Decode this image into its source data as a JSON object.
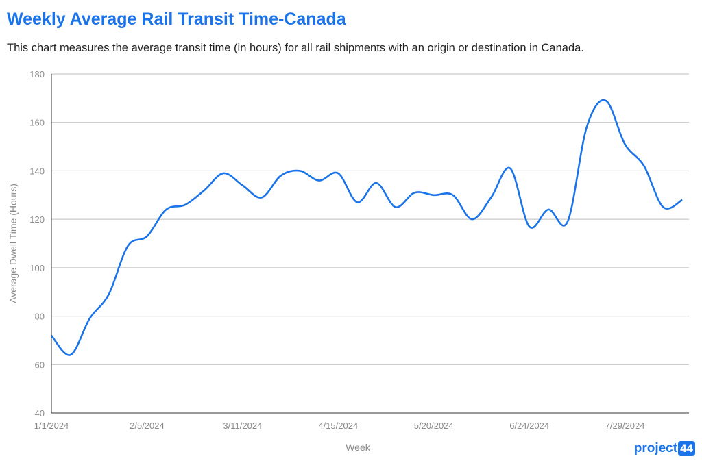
{
  "header": {
    "title": "Weekly Average Rail Transit Time-Canada",
    "subtitle": "This chart measures the average transit time (in hours) for all rail shipments with an origin or destination in Canada."
  },
  "logo": {
    "text": "project",
    "number": "44",
    "color": "#1a73e8"
  },
  "chart_data": {
    "type": "line",
    "title": "Weekly Average Rail Transit Time-Canada",
    "xlabel": "Week",
    "ylabel": "Average Dwell Time (Hours)",
    "ylim": [
      40,
      180
    ],
    "yticks": [
      "40",
      "60",
      "80",
      "100",
      "120",
      "140",
      "160",
      "180"
    ],
    "xticks": [
      "1/1/2024",
      "2/5/2024",
      "3/11/2024",
      "4/15/2024",
      "5/20/2024",
      "6/24/2024",
      "7/29/2024"
    ],
    "grid": true,
    "line_color": "#1a73e8",
    "x": [
      "1/1/2024",
      "1/8/2024",
      "1/15/2024",
      "1/22/2024",
      "1/29/2024",
      "2/5/2024",
      "2/12/2024",
      "2/19/2024",
      "2/26/2024",
      "3/4/2024",
      "3/11/2024",
      "3/18/2024",
      "3/25/2024",
      "4/1/2024",
      "4/8/2024",
      "4/15/2024",
      "4/22/2024",
      "4/29/2024",
      "5/6/2024",
      "5/13/2024",
      "5/20/2024",
      "5/27/2024",
      "6/3/2024",
      "6/10/2024",
      "6/17/2024",
      "6/24/2024",
      "7/1/2024",
      "7/8/2024",
      "7/15/2024",
      "7/22/2024",
      "7/29/2024",
      "8/5/2024",
      "8/12/2024",
      "8/19/2024"
    ],
    "series": [
      {
        "values": [
          72,
          64,
          79,
          89,
          109,
          113,
          124,
          126,
          132,
          139,
          134,
          129,
          138,
          140,
          136,
          139,
          127,
          135,
          125,
          131,
          130,
          130,
          120,
          129,
          141,
          117,
          124,
          119,
          158,
          169,
          151,
          142,
          125,
          128
        ]
      }
    ]
  }
}
